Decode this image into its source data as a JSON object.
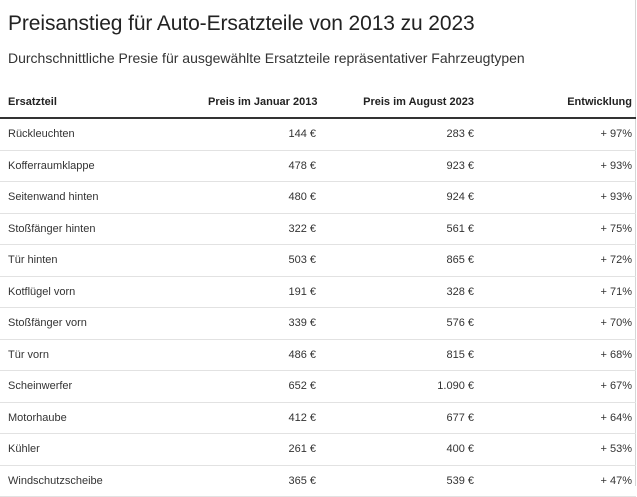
{
  "title": "Preisanstieg für Auto-Ersatzteile von 2013 zu 2023",
  "subtitle": "Durchschnittliche Presie für ausgewählte Ersatzteile repräsentativer Fahrzeugtypen",
  "chart_data": {
    "type": "table",
    "columns": [
      "Ersatzteil",
      "Preis im Januar 2013",
      "Preis im August 2023",
      "Entwicklung"
    ],
    "rows": [
      [
        "Rückleuchten",
        "144 €",
        "283 €",
        "+ 97%"
      ],
      [
        "Kofferraumklappe",
        "478 €",
        "923 €",
        "+ 93%"
      ],
      [
        "Seitenwand hinten",
        "480 €",
        "924 €",
        "+ 93%"
      ],
      [
        "Stoßfänger hinten",
        "322 €",
        "561 €",
        "+ 75%"
      ],
      [
        "Tür hinten",
        "503 €",
        "865 €",
        "+ 72%"
      ],
      [
        "Kotflügel vorn",
        "191 €",
        "328 €",
        "+ 71%"
      ],
      [
        "Stoßfänger vorn",
        "339 €",
        "576 €",
        "+ 70%"
      ],
      [
        "Tür vorn",
        "486 €",
        "815 €",
        "+ 68%"
      ],
      [
        "Scheinwerfer",
        "652 €",
        "1.090 €",
        "+ 67%"
      ],
      [
        "Motorhaube",
        "412 €",
        "677 €",
        "+ 64%"
      ],
      [
        "Kühler",
        "261 €",
        "400 €",
        "+ 53%"
      ],
      [
        "Windschutzscheibe",
        "365 €",
        "539 €",
        "+ 47%"
      ]
    ]
  }
}
